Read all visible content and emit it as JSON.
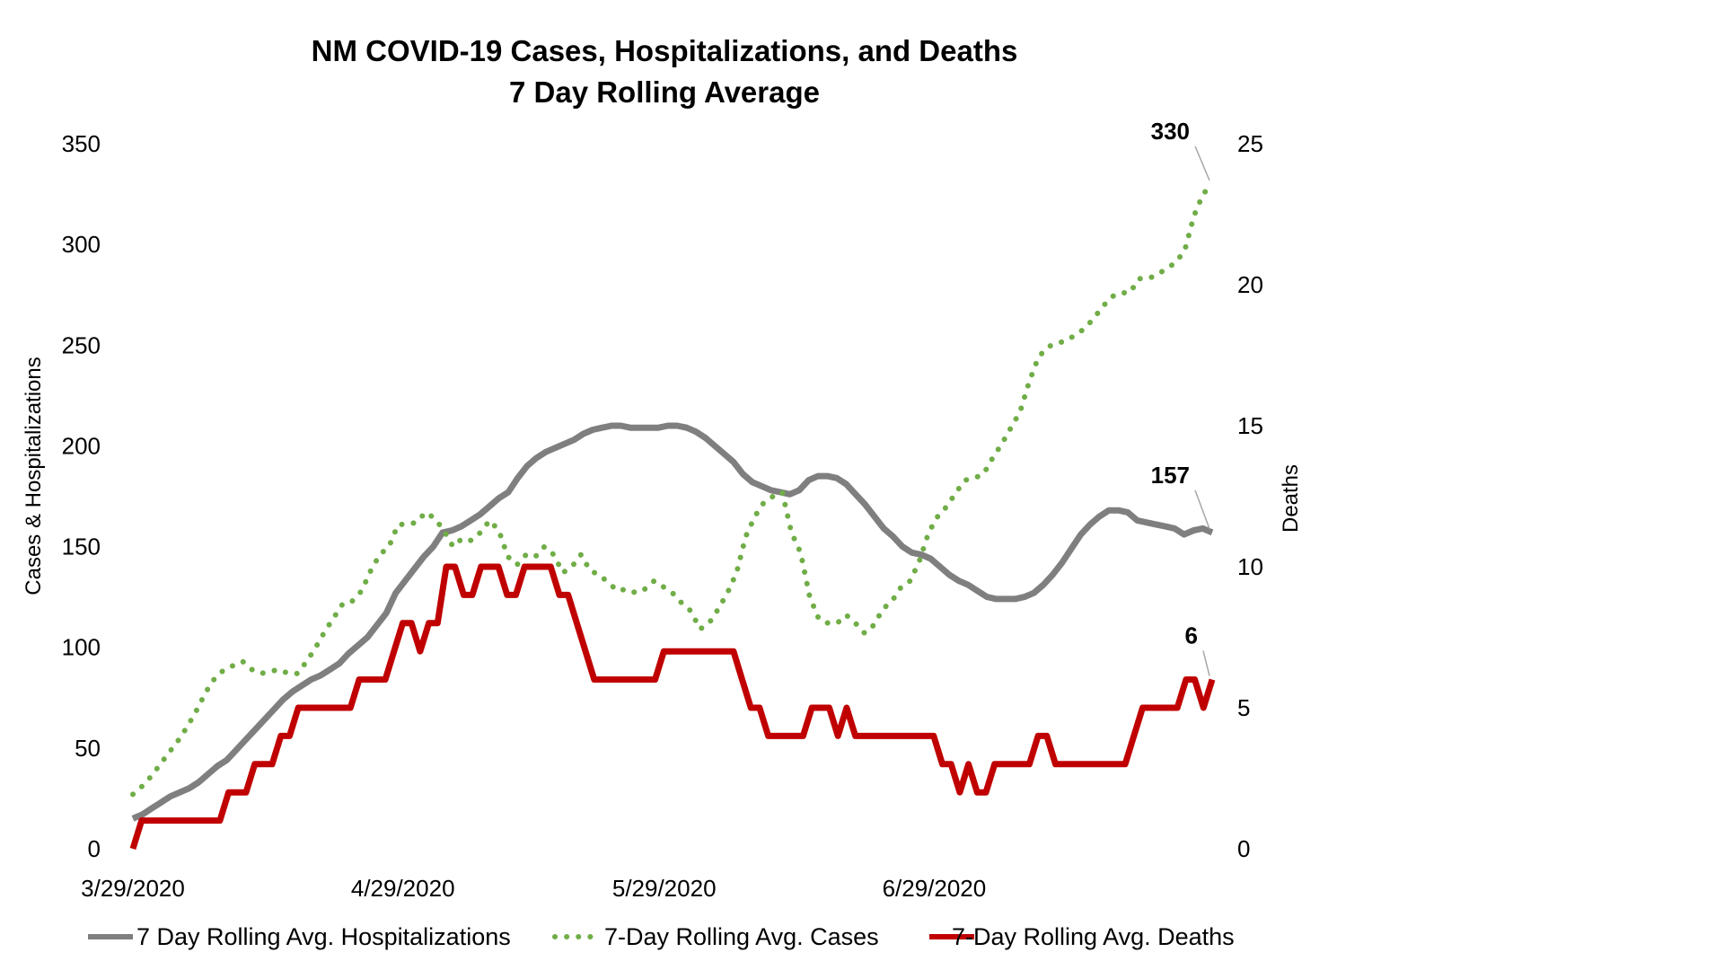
{
  "chart_data": {
    "type": "line",
    "title": "NM COVID-19 Cases, Hospitalizations, and Deaths",
    "subtitle": "7 Day Rolling Average",
    "ylabel": "Cases & Hospitalizations",
    "y2label": "Deaths",
    "ylim": [
      0,
      350
    ],
    "y2lim": [
      0,
      25
    ],
    "yticks": [
      "0",
      "50",
      "100",
      "150",
      "200",
      "250",
      "300",
      "350"
    ],
    "y2ticks": [
      "0",
      "5",
      "10",
      "15",
      "20",
      "25"
    ],
    "xtick_labels": [
      "3/29/2020",
      "4/29/2020",
      "5/29/2020",
      "6/29/2020"
    ],
    "x_start": "3/29/2020",
    "x_end": "7/31/2020",
    "legend_position": "bottom",
    "colors": {
      "hospitalizations": "#7f7f7f",
      "cases": "#70ad47",
      "deaths": "#c00000"
    },
    "series": [
      {
        "name": "7 Day Rolling Avg. Hospitalizations",
        "axis": "left",
        "style": "solid",
        "data_label": "157",
        "values": [
          15,
          17,
          20,
          23,
          26,
          28,
          30,
          33,
          37,
          41,
          44,
          49,
          54,
          59,
          64,
          69,
          74,
          78,
          81,
          84,
          86,
          89,
          92,
          97,
          101,
          105,
          111,
          117,
          127,
          133,
          139,
          145,
          150,
          157,
          158,
          160,
          163,
          166,
          170,
          174,
          177,
          184,
          190,
          194,
          197,
          199,
          201,
          203,
          206,
          208,
          209,
          210,
          210,
          209,
          209,
          209,
          209,
          210,
          210,
          209,
          207,
          204,
          200,
          196,
          192,
          186,
          182,
          180,
          178,
          177,
          176,
          178,
          183,
          185,
          185,
          184,
          181,
          176,
          171,
          165,
          159,
          155,
          150,
          147,
          146,
          144,
          140,
          136,
          133,
          131,
          128,
          125,
          124,
          124,
          124,
          125,
          127,
          131,
          136,
          142,
          149,
          156,
          161,
          165,
          168,
          168,
          167,
          163,
          162,
          161,
          160,
          159,
          156,
          158,
          159,
          157
        ],
        "label_index": 115
      },
      {
        "name": "7-Day Rolling Avg. Cases",
        "axis": "left",
        "style": "dotted",
        "data_label": "330",
        "values": [
          27,
          31,
          36,
          42,
          48,
          54,
          61,
          69,
          78,
          85,
          89,
          91,
          93,
          89,
          87,
          88,
          89,
          87,
          87,
          93,
          100,
          108,
          115,
          122,
          123,
          128,
          138,
          146,
          150,
          161,
          161,
          162,
          167,
          164,
          158,
          150,
          154,
          153,
          157,
          163,
          158,
          145,
          141,
          146,
          145,
          150,
          146,
          137,
          140,
          146,
          138,
          136,
          132,
          128,
          129,
          127,
          129,
          133,
          130,
          127,
          122,
          118,
          109,
          112,
          119,
          127,
          137,
          155,
          165,
          172,
          175,
          177,
          157,
          147,
          125,
          114,
          112,
          112,
          116,
          112,
          107,
          111,
          119,
          123,
          130,
          133,
          143,
          157,
          165,
          170,
          177,
          183,
          184,
          186,
          194,
          201,
          209,
          217,
          232,
          244,
          249,
          251,
          252,
          255,
          258,
          263,
          269,
          274,
          276,
          276,
          283,
          283,
          285,
          288,
          291,
          297,
          314,
          325,
          330
        ],
        "label_index": 118
      },
      {
        "name": "7-Day Rolling Avg. Deaths",
        "axis": "right",
        "style": "solid",
        "data_label": "6",
        "values": [
          0,
          1,
          1,
          1,
          1,
          1,
          1,
          1,
          1,
          1,
          1,
          2,
          2,
          2,
          3,
          3,
          3,
          4,
          4,
          5,
          5,
          5,
          5,
          5,
          5,
          5,
          6,
          6,
          6,
          6,
          7,
          8,
          8,
          7,
          8,
          8,
          10,
          10,
          9,
          9,
          10,
          10,
          10,
          9,
          9,
          10,
          10,
          10,
          10,
          9,
          9,
          8,
          7,
          6,
          6,
          6,
          6,
          6,
          6,
          6,
          6,
          7,
          7,
          7,
          7,
          7,
          7,
          7,
          7,
          7,
          6,
          5,
          5,
          4,
          4,
          4,
          4,
          4,
          5,
          5,
          5,
          4,
          5,
          4,
          4,
          4,
          4,
          4,
          4,
          4,
          4,
          4,
          4,
          3,
          3,
          2,
          3,
          2,
          2,
          3,
          3,
          3,
          3,
          3,
          4,
          4,
          3,
          3,
          3,
          3,
          3,
          3,
          3,
          3,
          3,
          4,
          5,
          5,
          5,
          5,
          5,
          6,
          6,
          5,
          6
        ],
        "label_index": 124
      }
    ]
  }
}
